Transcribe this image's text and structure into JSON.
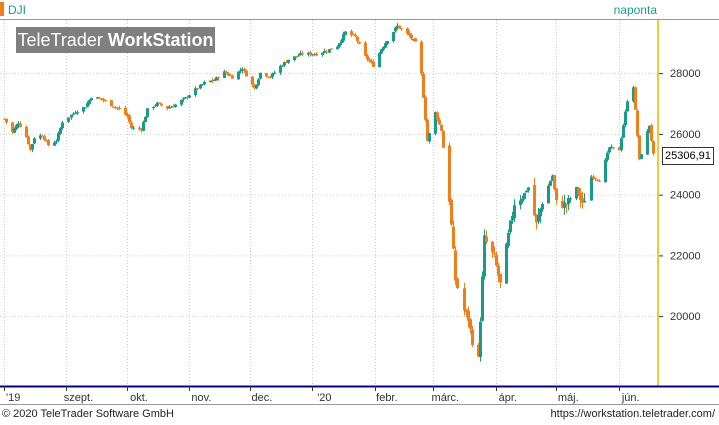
{
  "header": {
    "symbol": "DJI",
    "interval": "naponta",
    "watermark_light": "TeleTrader ",
    "watermark_bold": "WorkStation"
  },
  "footer": {
    "copyright": "© 2020 TeleTrader Software GmbH",
    "url": "https://workstation.teletrader.com/"
  },
  "last_price_label": "25306,91",
  "colors": {
    "up": "#1a9b8a",
    "down": "#f07e1a",
    "grid": "#cccccc",
    "axis": "#000080"
  },
  "chart_data": {
    "type": "candlestick",
    "title": "DJI",
    "xlabel": "",
    "ylabel": "",
    "y_ticks": [
      20000,
      22000,
      24000,
      26000,
      28000
    ],
    "y_tick_labels": [
      "20000",
      "22000",
      "24000",
      "26000",
      "28000"
    ],
    "ylim": [
      17700,
      29750
    ],
    "grid": true,
    "x_month_labels": [
      {
        "label": "'19",
        "date": "2019-08-01"
      },
      {
        "label": "szept.",
        "date": "2019-09-01"
      },
      {
        "label": "okt.",
        "date": "2019-10-01"
      },
      {
        "label": "nov.",
        "date": "2019-11-01"
      },
      {
        "label": "dec.",
        "date": "2019-12-01"
      },
      {
        "label": "'20",
        "date": "2020-01-01"
      },
      {
        "label": "febr.",
        "date": "2020-02-01"
      },
      {
        "label": "márc.",
        "date": "2020-03-01"
      },
      {
        "label": "ápr.",
        "date": "2020-04-01"
      },
      {
        "label": "máj.",
        "date": "2020-05-01"
      },
      {
        "label": "jún.",
        "date": "2020-06-01"
      }
    ],
    "xlim": [
      "2019-08-01",
      "2020-06-18"
    ],
    "last_price": 25306.91,
    "closes": [
      [
        "2019-08-01",
        26500
      ],
      [
        "2019-08-05",
        26050
      ],
      [
        "2019-08-08",
        26380
      ],
      [
        "2019-08-12",
        25900
      ],
      [
        "2019-08-14",
        25480
      ],
      [
        "2019-08-16",
        25880
      ],
      [
        "2019-08-20",
        25960
      ],
      [
        "2019-08-23",
        25630
      ],
      [
        "2019-08-27",
        25780
      ],
      [
        "2019-08-30",
        26400
      ],
      [
        "2019-09-05",
        26730
      ],
      [
        "2019-09-10",
        26900
      ],
      [
        "2019-09-13",
        27220
      ],
      [
        "2019-09-18",
        27150
      ],
      [
        "2019-09-23",
        26950
      ],
      [
        "2019-09-27",
        26820
      ],
      [
        "2019-10-01",
        26580
      ],
      [
        "2019-10-03",
        26200
      ],
      [
        "2019-10-08",
        26160
      ],
      [
        "2019-10-11",
        26800
      ],
      [
        "2019-10-16",
        27000
      ],
      [
        "2019-10-21",
        26850
      ],
      [
        "2019-10-25",
        26960
      ],
      [
        "2019-10-30",
        27180
      ],
      [
        "2019-11-04",
        27460
      ],
      [
        "2019-11-08",
        27680
      ],
      [
        "2019-11-13",
        27780
      ],
      [
        "2019-11-18",
        28030
      ],
      [
        "2019-11-22",
        27870
      ],
      [
        "2019-11-27",
        28160
      ],
      [
        "2019-12-03",
        27500
      ],
      [
        "2019-12-06",
        28010
      ],
      [
        "2019-12-11",
        27880
      ],
      [
        "2019-12-16",
        28230
      ],
      [
        "2019-12-20",
        28450
      ],
      [
        "2019-12-27",
        28640
      ],
      [
        "2020-01-03",
        28630
      ],
      [
        "2020-01-08",
        28740
      ],
      [
        "2020-01-13",
        28900
      ],
      [
        "2020-01-17",
        29350
      ],
      [
        "2020-01-22",
        29190
      ],
      [
        "2020-01-27",
        28540
      ],
      [
        "2020-01-31",
        28250
      ],
      [
        "2020-02-04",
        28800
      ],
      [
        "2020-02-07",
        29100
      ],
      [
        "2020-02-12",
        29550
      ],
      [
        "2020-02-18",
        29230
      ],
      [
        "2020-02-21",
        28990
      ],
      [
        "2020-02-24",
        27960
      ],
      [
        "2020-02-27",
        25770
      ],
      [
        "2020-03-02",
        26700
      ],
      [
        "2020-03-05",
        26120
      ],
      [
        "2020-03-09",
        23850
      ],
      [
        "2020-03-12",
        21200
      ],
      [
        "2020-03-16",
        20190
      ],
      [
        "2020-03-18",
        19900
      ],
      [
        "2020-03-20",
        19170
      ],
      [
        "2020-03-23",
        18590
      ],
      [
        "2020-03-26",
        22550
      ],
      [
        "2020-03-31",
        21920
      ],
      [
        "2020-04-03",
        21050
      ],
      [
        "2020-04-07",
        22650
      ],
      [
        "2020-04-10",
        23720
      ],
      [
        "2020-04-14",
        23950
      ],
      [
        "2020-04-17",
        24240
      ],
      [
        "2020-04-21",
        23020
      ],
      [
        "2020-04-24",
        23780
      ],
      [
        "2020-04-29",
        24630
      ],
      [
        "2020-05-01",
        23720
      ],
      [
        "2020-05-06",
        23660
      ],
      [
        "2020-05-11",
        24220
      ],
      [
        "2020-05-14",
        23630
      ],
      [
        "2020-05-18",
        24600
      ],
      [
        "2020-05-22",
        24470
      ],
      [
        "2020-05-27",
        25550
      ],
      [
        "2020-06-01",
        25480
      ],
      [
        "2020-06-05",
        27110
      ],
      [
        "2020-06-08",
        27570
      ],
      [
        "2020-06-11",
        25130
      ],
      [
        "2020-06-16",
        26290
      ],
      [
        "2020-06-18",
        25306.91
      ]
    ]
  }
}
